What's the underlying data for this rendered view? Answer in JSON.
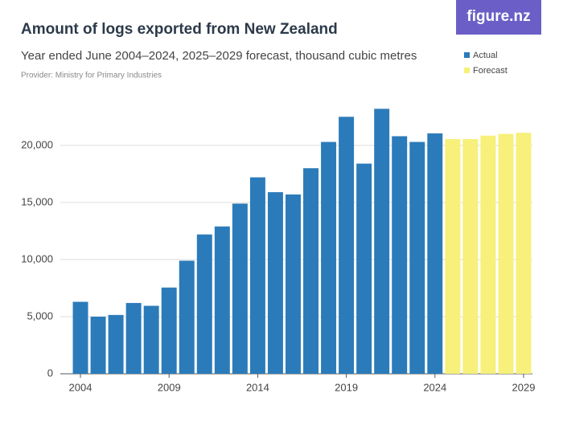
{
  "logo": "figure.nz",
  "chart_data": {
    "type": "bar",
    "title": "Amount of logs exported from New Zealand",
    "subtitle": "Year ended June 2004–2024, 2025–2029 forecast, thousand cubic metres",
    "source": "Provider: Ministry for Primary Industries",
    "x": [
      2004,
      2005,
      2006,
      2007,
      2008,
      2009,
      2010,
      2011,
      2012,
      2013,
      2014,
      2015,
      2016,
      2017,
      2018,
      2019,
      2020,
      2021,
      2022,
      2023,
      2024,
      2025,
      2026,
      2027,
      2028,
      2029
    ],
    "series": [
      {
        "name": "Actual",
        "color": "#2b7bba",
        "values": [
          6300,
          5000,
          5150,
          6200,
          5950,
          7550,
          9900,
          12200,
          12900,
          14900,
          17200,
          15900,
          15700,
          18000,
          20300,
          22500,
          18400,
          23200,
          20800,
          20300,
          21050,
          null,
          null,
          null,
          null,
          null
        ]
      },
      {
        "name": "Forecast",
        "color": "#f7f07a",
        "values": [
          null,
          null,
          null,
          null,
          null,
          null,
          null,
          null,
          null,
          null,
          null,
          null,
          null,
          null,
          null,
          null,
          null,
          null,
          null,
          null,
          null,
          20550,
          20550,
          20850,
          21000,
          21100
        ]
      }
    ],
    "xlim": [
      2003.5,
      2029.5
    ],
    "xticks": [
      2004,
      2009,
      2014,
      2019,
      2024,
      2029
    ],
    "ylim": [
      0,
      24000
    ],
    "yticks": [
      0,
      {
        "value": 5000,
        "label": "5,000"
      },
      {
        "value": 10000,
        "label": "10,000"
      },
      {
        "value": 15000,
        "label": "15,000"
      },
      {
        "value": 20000,
        "label": "20,000"
      }
    ],
    "grid": true,
    "legend": "top-right"
  }
}
